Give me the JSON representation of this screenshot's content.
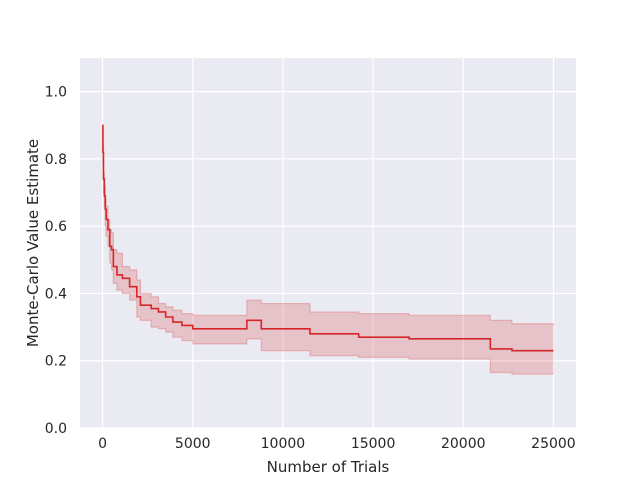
{
  "chart_data": {
    "type": "line",
    "xlabel": "Number of Trials",
    "ylabel": "Monte-Carlo Value Estimate",
    "xlim": [
      -1250,
      26250
    ],
    "ylim": [
      0.0,
      1.1
    ],
    "xticks": [
      0,
      5000,
      10000,
      15000,
      20000,
      25000
    ],
    "xtick_labels": [
      "0",
      "5000",
      "10000",
      "15000",
      "20000",
      "25000"
    ],
    "yticks": [
      0.0,
      0.2,
      0.4,
      0.6,
      0.8,
      1.0
    ],
    "ytick_labels": [
      "0.0",
      "0.2",
      "0.4",
      "0.6",
      "0.8",
      "1.0"
    ],
    "grid": true,
    "background": "#eaeaf2",
    "colors": {
      "line": "#d62728",
      "band": "#d62728"
    },
    "series": [
      {
        "kind": "mean",
        "x": [
          0,
          20,
          50,
          100,
          150,
          200,
          300,
          400,
          500,
          600,
          800,
          1100,
          1500,
          1900,
          2100,
          2700,
          3100,
          3500,
          3900,
          4400,
          5000,
          8000,
          8800,
          11500,
          14200,
          17000,
          21500,
          22700,
          25000
        ],
        "y": [
          0.9,
          0.82,
          0.74,
          0.69,
          0.65,
          0.62,
          0.59,
          0.54,
          0.53,
          0.48,
          0.455,
          0.445,
          0.42,
          0.39,
          0.365,
          0.355,
          0.345,
          0.33,
          0.315,
          0.305,
          0.295,
          0.32,
          0.295,
          0.28,
          0.27,
          0.265,
          0.235,
          0.23,
          0.23
        ]
      },
      {
        "kind": "band",
        "x": [
          0,
          20,
          50,
          100,
          150,
          200,
          300,
          400,
          500,
          600,
          800,
          1100,
          1500,
          1900,
          2100,
          2700,
          3100,
          3500,
          3900,
          4400,
          5000,
          8000,
          8800,
          11500,
          14200,
          17000,
          21500,
          22700,
          25000
        ],
        "upper": [
          0.9,
          0.84,
          0.76,
          0.72,
          0.68,
          0.66,
          0.62,
          0.59,
          0.58,
          0.53,
          0.52,
          0.48,
          0.47,
          0.44,
          0.4,
          0.39,
          0.37,
          0.36,
          0.35,
          0.34,
          0.335,
          0.38,
          0.37,
          0.345,
          0.34,
          0.335,
          0.32,
          0.31,
          0.305
        ],
        "lower": [
          0.9,
          0.79,
          0.7,
          0.66,
          0.6,
          0.57,
          0.54,
          0.49,
          0.47,
          0.43,
          0.41,
          0.4,
          0.38,
          0.33,
          0.32,
          0.3,
          0.295,
          0.285,
          0.27,
          0.26,
          0.25,
          0.265,
          0.23,
          0.215,
          0.21,
          0.205,
          0.165,
          0.16,
          0.16
        ]
      }
    ]
  }
}
